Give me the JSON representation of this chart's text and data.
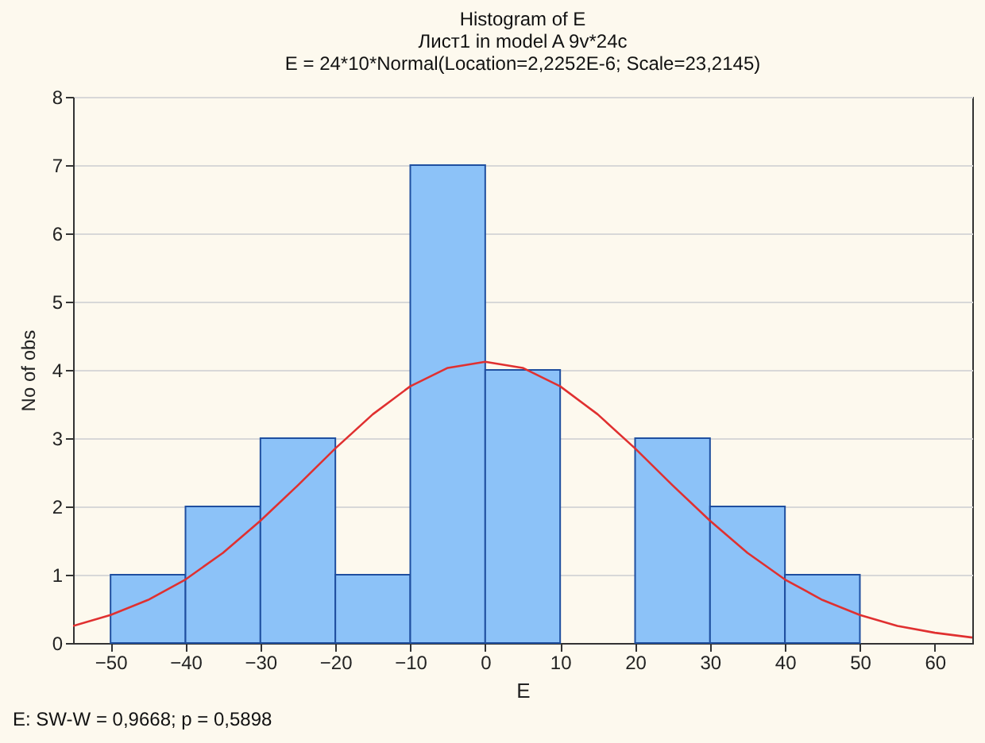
{
  "chart_data": {
    "type": "histogram",
    "title": "Histogram of E",
    "subtitle": "Лист1 in model A 9v*24c\nE = 24*10*Normal(Location=2,2252E-6; Scale=23,2145)",
    "xlabel": "E",
    "ylabel": "No of obs",
    "annotations": [
      "E:   SW-W = 0,9668; p = 0,5898"
    ],
    "bins": [
      -50,
      -40,
      -30,
      -20,
      -10,
      0,
      10,
      20,
      30,
      40,
      50
    ],
    "values": [
      1,
      2,
      3,
      1,
      7,
      4,
      0,
      3,
      2,
      1
    ],
    "color": "#8cc2f8",
    "series": [
      {
        "type": "line",
        "color": "#e03030",
        "x": [
          -55,
          -50,
          -45,
          -40,
          -35,
          -30,
          -25,
          -20,
          -15,
          -10,
          -5,
          0,
          5,
          10,
          15,
          20,
          25,
          30,
          35,
          40,
          45,
          50,
          55,
          60,
          65
        ],
        "values": [
          0.25,
          0.41,
          0.63,
          0.93,
          1.32,
          1.79,
          2.31,
          2.85,
          3.35,
          3.76,
          4.03,
          4.12,
          4.03,
          3.76,
          3.35,
          2.85,
          2.31,
          1.79,
          1.32,
          0.93,
          0.63,
          0.41,
          0.25,
          0.15,
          0.08
        ]
      }
    ],
    "xlim": [
      -55,
      65
    ],
    "xticks": [
      -50,
      -40,
      -30,
      -20,
      -10,
      0,
      10,
      20,
      30,
      40,
      50,
      60
    ],
    "ylim": [
      0,
      8
    ],
    "yticks": [
      0,
      1,
      2,
      3,
      4,
      5,
      6,
      7,
      8
    ],
    "grid": "y"
  }
}
